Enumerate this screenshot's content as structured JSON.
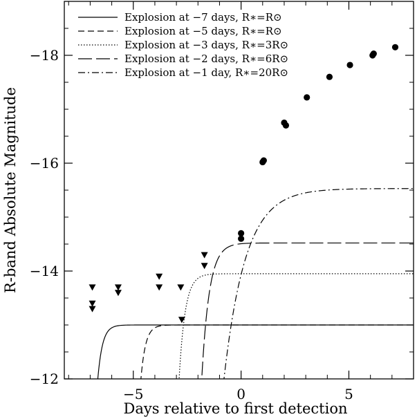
{
  "chart_data": {
    "type": "scatter",
    "xlabel": "Days relative to first detection",
    "ylabel": "R-band Absolute Magnitude",
    "xlim": [
      -8.2,
      8.0
    ],
    "ylim": [
      -12,
      -19
    ],
    "y_inverted": true,
    "x_ticks": [
      -5,
      0,
      5
    ],
    "x_tick_labels": [
      "−5",
      "0",
      "5"
    ],
    "y_ticks": [
      -12,
      -14,
      -16,
      -18
    ],
    "y_tick_labels": [
      "−12",
      "−14",
      "−16",
      "−18"
    ],
    "grid": false,
    "legend_position": "top-left",
    "legend": [
      {
        "dash": "solid",
        "label": "Explosion at −7 days, R∗=R⊙"
      },
      {
        "dash": "short-dash",
        "label": "Explosion at −5 days, R∗=R⊙"
      },
      {
        "dash": "dotted",
        "label": "Explosion at −3 days, R∗=3R⊙"
      },
      {
        "dash": "long-dash",
        "label": "Explosion at −2 days, R∗=6R⊙"
      },
      {
        "dash": "dash-dot",
        "label": "Explosion at −1 day, R∗=20R⊙"
      }
    ],
    "detections": [
      {
        "x": 0.0,
        "y": -14.7
      },
      {
        "x": 0.0,
        "y": -14.6
      },
      {
        "x": 1.0,
        "y": -16.02
      },
      {
        "x": 1.05,
        "y": -16.05
      },
      {
        "x": 2.0,
        "y": -16.75
      },
      {
        "x": 2.08,
        "y": -16.7
      },
      {
        "x": 3.05,
        "y": -17.22
      },
      {
        "x": 4.1,
        "y": -17.6
      },
      {
        "x": 5.05,
        "y": -17.82
      },
      {
        "x": 6.1,
        "y": -18.0
      },
      {
        "x": 6.15,
        "y": -18.03
      },
      {
        "x": 7.15,
        "y": -18.15
      }
    ],
    "upper_limits": [
      {
        "x": -6.9,
        "y": -13.7
      },
      {
        "x": -6.9,
        "y": -13.4
      },
      {
        "x": -6.9,
        "y": -13.3
      },
      {
        "x": -5.7,
        "y": -13.7
      },
      {
        "x": -5.7,
        "y": -13.6
      },
      {
        "x": -3.8,
        "y": -13.9
      },
      {
        "x": -3.8,
        "y": -13.7
      },
      {
        "x": -2.8,
        "y": -13.7
      },
      {
        "x": -2.75,
        "y": -13.1
      },
      {
        "x": -1.7,
        "y": -14.3
      },
      {
        "x": -1.7,
        "y": -14.1
      }
    ],
    "series": [
      {
        "dash": "solid",
        "t0": -6.75,
        "plateau": -13.0,
        "rise": 0.22,
        "x_end": 8.0
      },
      {
        "dash": "short-dash",
        "t0": -4.75,
        "plateau": -13.0,
        "rise": 0.22,
        "x_end": 8.0
      },
      {
        "dash": "dotted",
        "t0": -2.95,
        "plateau": -13.95,
        "rise": 0.28,
        "x_end": 8.0
      },
      {
        "dash": "long-dash",
        "t0": -1.9,
        "plateau": -14.52,
        "rise": 0.35,
        "x_end": 8.0
      },
      {
        "dash": "dash-dot",
        "t0": -0.95,
        "plateau": -15.53,
        "rise": 1.0,
        "x_end": 8.0
      }
    ]
  }
}
